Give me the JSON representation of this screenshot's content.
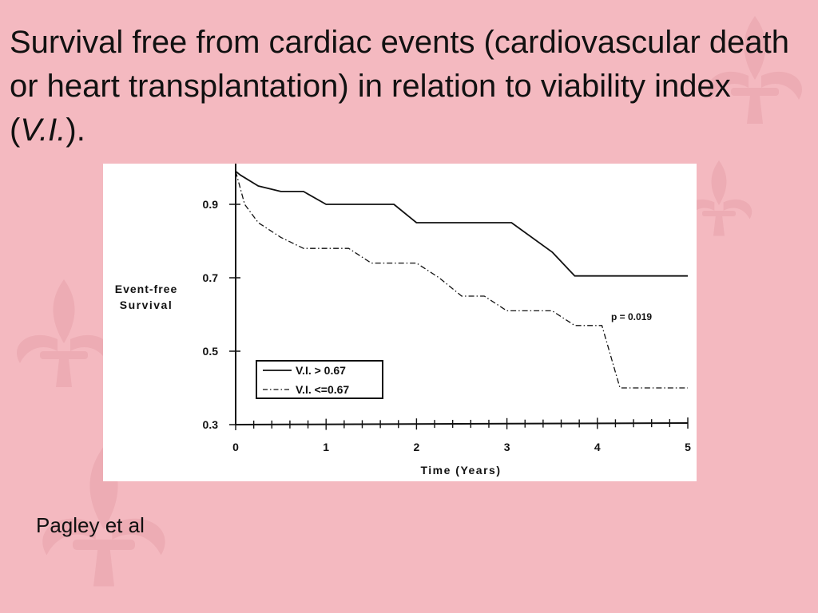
{
  "slide": {
    "title_part1": "Survival free from cardiac events (cardiovascular death or heart transplantation) in relation to viability index (",
    "title_italic": "V.I.",
    "title_part2": ").",
    "citation": "Pagley et al"
  },
  "colors": {
    "background": "#f4b9c0",
    "decoration": "#ebaab1",
    "panel": "#ffffff",
    "ink": "#111111"
  },
  "chart_data": {
    "type": "line",
    "title": "",
    "xlabel": "Time (Years)",
    "ylabel_line1": "Event-free",
    "ylabel_line2": "Survival",
    "xlim": [
      0,
      5
    ],
    "ylim": [
      0.3,
      1.0
    ],
    "x_ticks": [
      0,
      1,
      2,
      3,
      4,
      5
    ],
    "x_tick_labels": [
      "0",
      "1",
      "2",
      "3",
      "4",
      "5"
    ],
    "y_ticks": [
      0.3,
      0.5,
      0.7,
      0.9
    ],
    "y_tick_labels": [
      "0.3",
      "0.5",
      "0.7",
      "0.9"
    ],
    "annotation": "p = 0.019",
    "legend_position": "bottom-left",
    "grid": false,
    "step": true,
    "series": [
      {
        "name": "V.I. > 0.67",
        "style": "solid",
        "x": [
          0,
          0.05,
          0.25,
          0.5,
          0.75,
          1.0,
          1.75,
          2.0,
          3.0,
          3.05,
          3.5,
          3.75,
          4.0,
          5.0
        ],
        "y": [
          0.99,
          0.98,
          0.95,
          0.935,
          0.935,
          0.9,
          0.9,
          0.85,
          0.85,
          0.85,
          0.77,
          0.705,
          0.705,
          0.705
        ]
      },
      {
        "name": "V.I. <=0.67",
        "style": "dash-dot",
        "x": [
          0,
          0.1,
          0.25,
          0.5,
          0.75,
          1.0,
          1.25,
          1.5,
          2.0,
          2.25,
          2.5,
          2.75,
          3.0,
          3.25,
          3.5,
          3.75,
          4.0,
          4.05,
          4.25,
          4.75,
          5.0
        ],
        "y": [
          0.99,
          0.9,
          0.85,
          0.81,
          0.78,
          0.78,
          0.78,
          0.74,
          0.74,
          0.7,
          0.65,
          0.65,
          0.61,
          0.61,
          0.61,
          0.57,
          0.57,
          0.57,
          0.4,
          0.4,
          0.4
        ]
      }
    ]
  }
}
